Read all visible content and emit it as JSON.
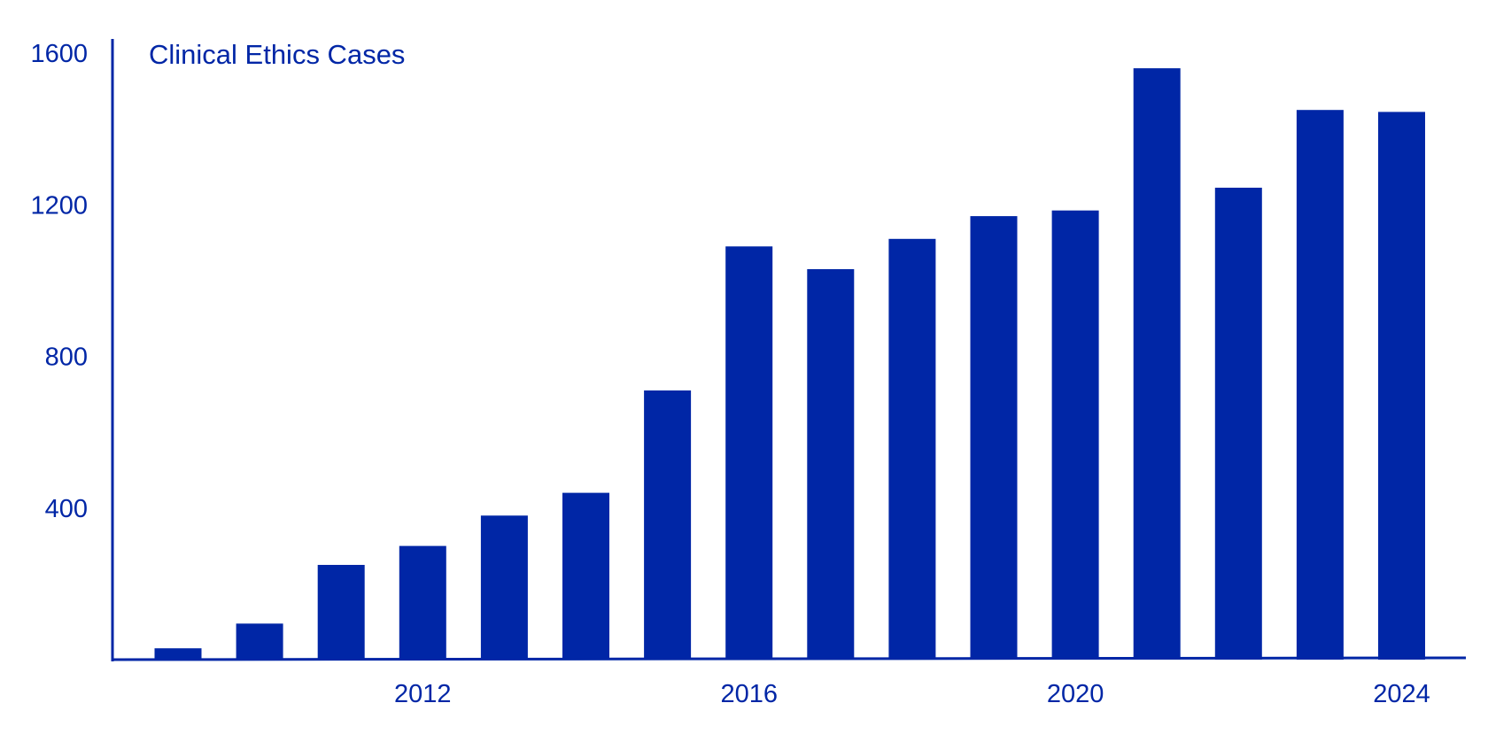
{
  "chart_data": {
    "type": "bar",
    "title": "Clinical Ethics Cases",
    "xlabel": "",
    "ylabel": "",
    "x": [
      2009,
      2010,
      2011,
      2012,
      2013,
      2014,
      2015,
      2016,
      2017,
      2018,
      2019,
      2020,
      2021,
      2022,
      2023,
      2024
    ],
    "values": [
      30,
      95,
      250,
      300,
      380,
      440,
      710,
      1090,
      1030,
      1110,
      1170,
      1185,
      1560,
      1245,
      1450,
      1445
    ],
    "x_ticks": [
      "2012",
      "2016",
      "2020",
      "2024"
    ],
    "y_ticks": [
      400,
      800,
      1200,
      1600
    ],
    "ylim": [
      0,
      1600
    ],
    "grid": false,
    "legend": "none",
    "colors": {
      "bar": "#0026a6",
      "axis": "#0026a6",
      "text": "#0026a6"
    }
  }
}
